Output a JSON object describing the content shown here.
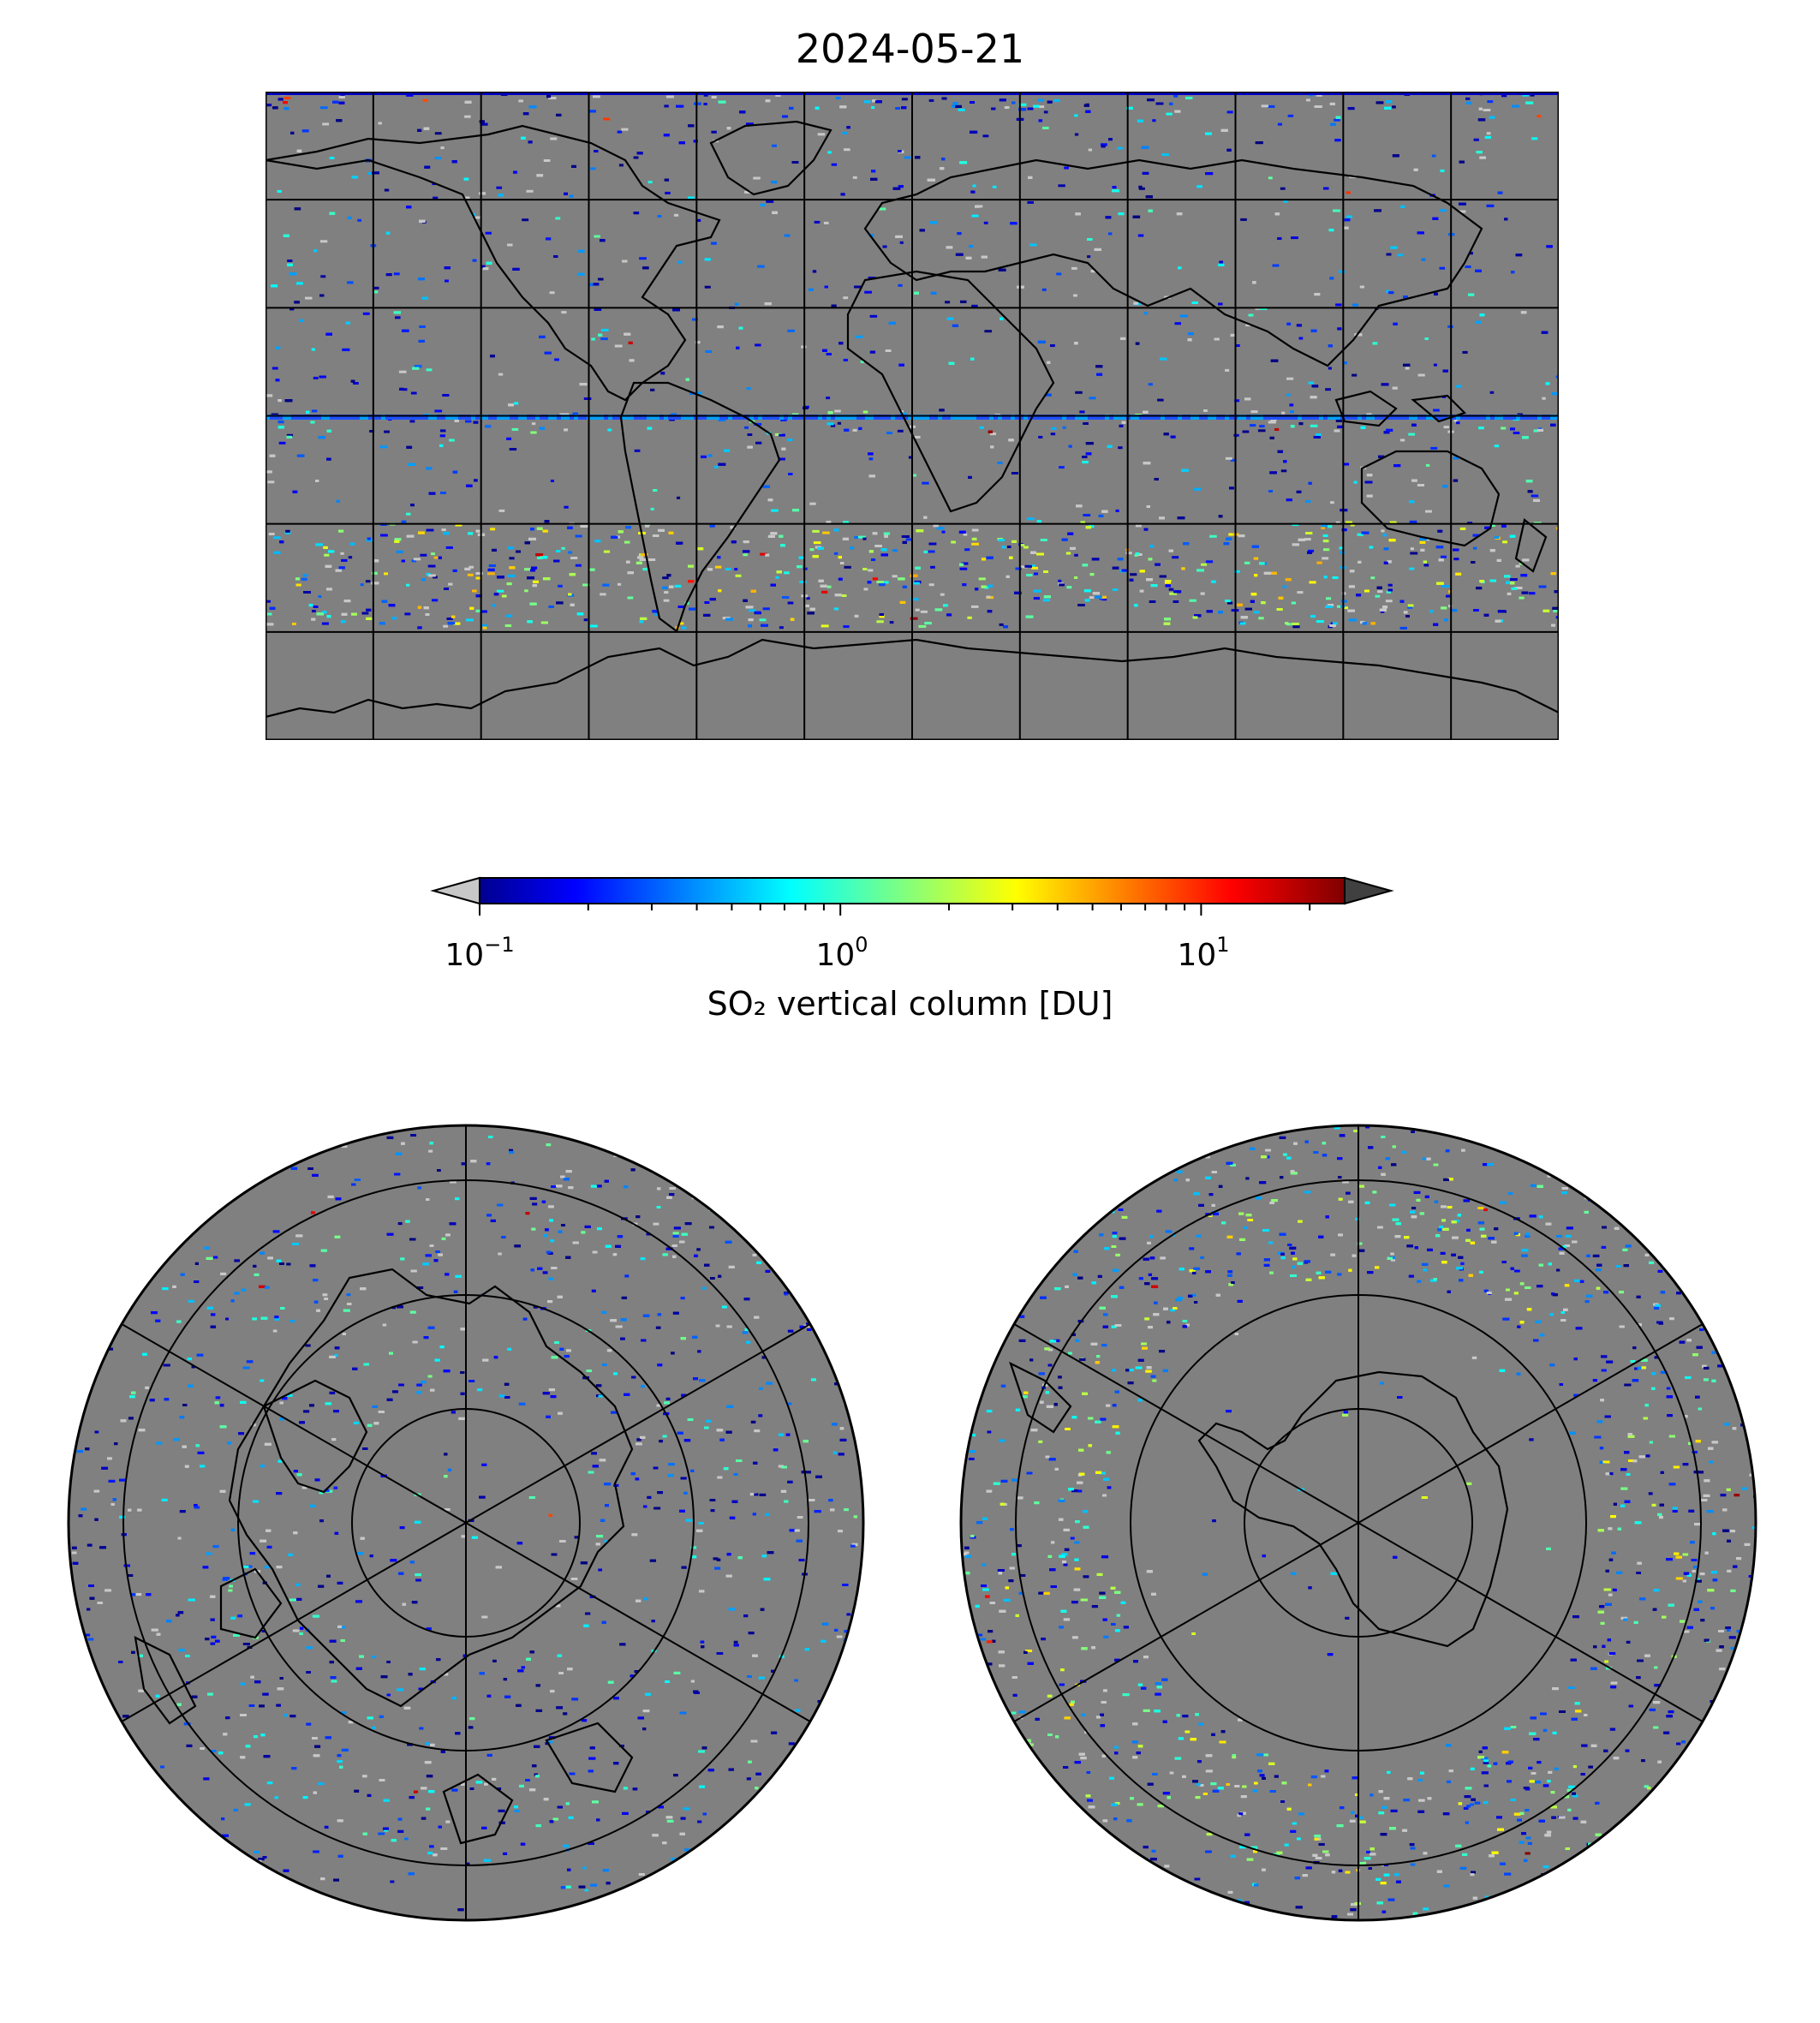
{
  "title": "2024-05-21",
  "colorbar": {
    "label": "SO₂ vertical column [DU]",
    "scale": "log",
    "colormap": "jet",
    "range": [
      0.1,
      25
    ],
    "ticks": [
      {
        "base": "10",
        "exp": "−1",
        "value": 0.1
      },
      {
        "base": "10",
        "exp": "0",
        "value": 1
      },
      {
        "base": "10",
        "exp": "1",
        "value": 10
      }
    ],
    "under_color": "#c8c8c8",
    "over_color": "#404040"
  },
  "maps": {
    "background_color": "#808080",
    "global": {
      "projection": "plate-carree",
      "gridlines": true
    },
    "north_polar": {
      "projection": "north-polar-stereographic",
      "gridlines": true
    },
    "south_polar": {
      "projection": "south-polar-stereographic",
      "gridlines": true
    }
  }
}
